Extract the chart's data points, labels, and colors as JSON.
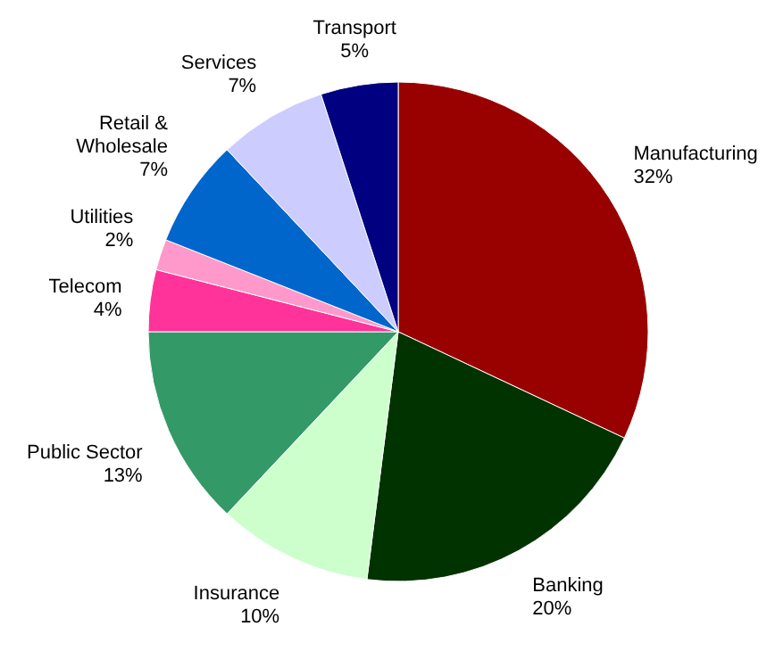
{
  "chart_data": {
    "type": "pie",
    "categories": [
      "Manufacturing",
      "Banking",
      "Insurance",
      "Public Sector",
      "Telecom",
      "Utilities",
      "Retail & Wholesale",
      "Services",
      "Transport"
    ],
    "values": [
      32,
      20,
      10,
      13,
      4,
      2,
      7,
      7,
      5
    ],
    "value_labels": [
      "32%",
      "20%",
      "10%",
      "13%",
      "4%",
      "2%",
      "7%",
      "7%",
      "5%"
    ],
    "colors": [
      "#990000",
      "#003300",
      "#ccffcc",
      "#339966",
      "#ff3399",
      "#ff99cc",
      "#0066cc",
      "#ccccff",
      "#000080"
    ]
  }
}
